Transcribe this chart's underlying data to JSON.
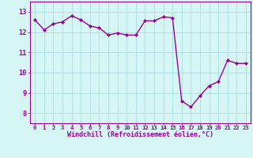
{
  "x": [
    0,
    1,
    2,
    3,
    4,
    5,
    6,
    7,
    8,
    9,
    10,
    11,
    12,
    13,
    14,
    15,
    16,
    17,
    18,
    19,
    20,
    21,
    22,
    23
  ],
  "y": [
    12.6,
    12.1,
    12.4,
    12.5,
    12.8,
    12.6,
    12.3,
    12.2,
    11.85,
    11.95,
    11.85,
    11.85,
    12.55,
    12.55,
    12.75,
    12.7,
    8.6,
    8.3,
    8.85,
    9.35,
    9.55,
    10.6,
    10.45,
    10.45
  ],
  "line_color": "#990099",
  "marker": "D",
  "marker_size": 2.0,
  "bg_color": "#d6f5f5",
  "grid_color": "#b0dede",
  "xlabel": "Windchill (Refroidissement éolien,°C)",
  "xlabel_color": "#990099",
  "tick_color": "#990099",
  "ylim": [
    7.5,
    13.5
  ],
  "xlim": [
    -0.5,
    23.5
  ],
  "yticks": [
    8,
    9,
    10,
    11,
    12,
    13
  ],
  "xticks": [
    0,
    1,
    2,
    3,
    4,
    5,
    6,
    7,
    8,
    9,
    10,
    11,
    12,
    13,
    14,
    15,
    16,
    17,
    18,
    19,
    20,
    21,
    22,
    23
  ],
  "xtick_labels": [
    "0",
    "1",
    "2",
    "3",
    "4",
    "5",
    "6",
    "7",
    "8",
    "9",
    "10",
    "11",
    "12",
    "13",
    "14",
    "15",
    "16",
    "17",
    "18",
    "19",
    "20",
    "21",
    "22",
    "23"
  ],
  "xlabel_fontsize": 6.0,
  "xtick_fontsize": 5.2,
  "ytick_fontsize": 6.2
}
